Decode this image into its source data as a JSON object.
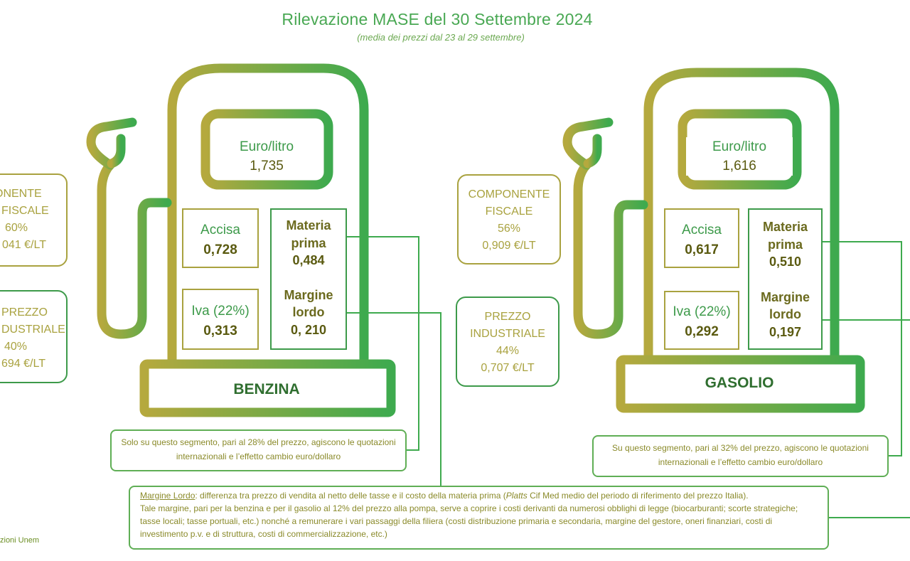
{
  "title": "Rilevazione MASE del 30 Settembre 2024",
  "subtitle": "(media dei prezzi dal 23 al 29 settembre)",
  "benzina": {
    "name": "BENZINA",
    "euro_litro_label": "Euro/litro",
    "euro_litro_value": "1,735",
    "accisa_label": "Accisa",
    "accisa_value": "0,728",
    "iva_label": "Iva (22%)",
    "iva_value": "0,313",
    "materia_label_1": "Materia",
    "materia_label_2": "prima",
    "materia_value": "0,484",
    "margine_label_1": "Margine",
    "margine_label_2": "lordo",
    "margine_value": "0, 210",
    "fiscale_1": "MPONENTE",
    "fiscale_2": "FISCALE",
    "fiscale_pct": "60%",
    "fiscale_eur": "041 €/LT",
    "industriale_1": "PREZZO",
    "industriale_2": "DUSTRIALE",
    "industriale_pct": "40%",
    "industriale_eur": "694 €/LT",
    "segment_note": "Solo su questo segmento, pari al 28% del prezzo, agiscono le quotazioni internazionali e l’effetto cambio euro/dollaro"
  },
  "gasolio": {
    "name": "GASOLIO",
    "euro_litro_label": "Euro/litro",
    "euro_litro_value": "1,616",
    "accisa_label": "Accisa",
    "accisa_value": "0,617",
    "iva_label": "Iva (22%)",
    "iva_value": "0,292",
    "materia_label_1": "Materia",
    "materia_label_2": "prima",
    "materia_value": "0,510",
    "margine_label_1": "Margine",
    "margine_label_2": "lordo",
    "margine_value": "0,197",
    "fiscale_1": "COMPONENTE",
    "fiscale_2": "FISCALE",
    "fiscale_pct": "56%",
    "fiscale_eur": "0,909 €/LT",
    "industriale_1": "PREZZO",
    "industriale_2": "INDUSTRIALE",
    "industriale_pct": "44%",
    "industriale_eur": "0,707 €/LT",
    "segment_note": "Su questo segmento, pari al 32% del prezzo, agiscono le quotazioni internazionali e l’effetto cambio euro/dollaro"
  },
  "margine_note": {
    "term": "Margine Lordo",
    "text_1": ": differenza tra prezzo di vendita al netto delle tasse e il costo della materia prima (",
    "platts": "Platts",
    "text_2": " Cif Med medio del periodo di riferimento del prezzo Italia).",
    "text_3": "Tale margine, pari per la benzina e per il gasolio al 12% del prezzo alla pompa, serve a coprire i costi derivanti da numerosi obblighi di legge (biocarburanti; scorte strategiche; tasse locali; tasse portuali, etc.) nonché a remunerare i vari passaggi della filiera (costi distribuzione primaria e secondaria, margine del gestore, oneri finanziari, costi di investimento p.v. e di struttura, costi di commercializzazione, etc.)"
  },
  "source": "zioni Unem",
  "colors": {
    "olive": "#a9a23f",
    "green": "#3d9a4a",
    "light_green": "#5fae55"
  }
}
